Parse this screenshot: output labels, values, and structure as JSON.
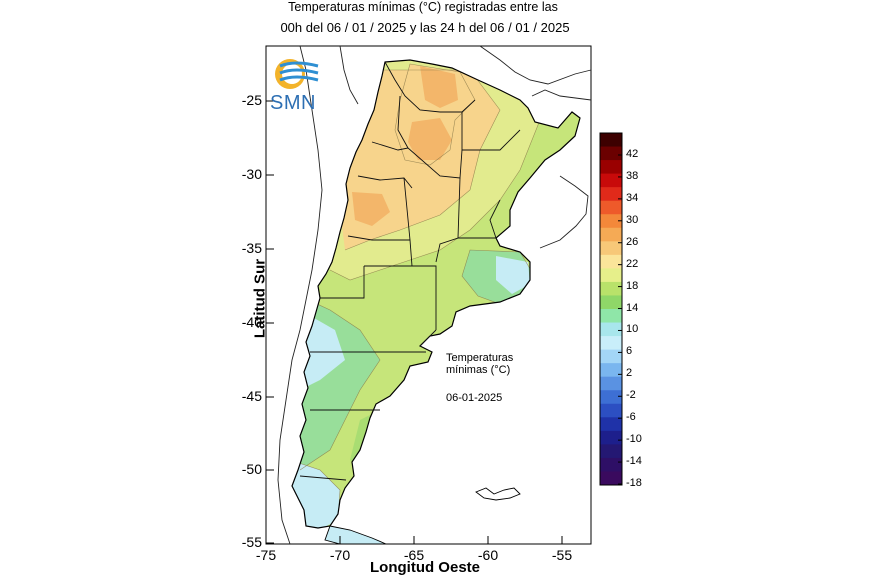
{
  "title_line1": "Temperaturas mínimas (°C) registradas entre las",
  "title_line2": "00h del 06 / 01 / 2025 y las 24 h del 06 / 01 / 2025",
  "ylabel": "Latitud Sur",
  "xlabel": "Longitud Oeste",
  "y_ticks": [
    "-25",
    "-30",
    "-35",
    "-40",
    "-45",
    "-50",
    "-55"
  ],
  "x_ticks": [
    "-75",
    "-70",
    "-65",
    "-60",
    "-55"
  ],
  "logo_text": "SMN",
  "annotation": {
    "line1": "Temperaturas",
    "line2": "mínimas (°C)",
    "date": "06-01-2025"
  },
  "colorbar": {
    "labels": [
      "42",
      "38",
      "34",
      "30",
      "26",
      "22",
      "18",
      "14",
      "10",
      "6",
      "2",
      "-2",
      "-6",
      "-10",
      "-14",
      "-18"
    ],
    "colors_top_to_bottom": [
      "#3d0000",
      "#6b0000",
      "#9a0000",
      "#c80a0a",
      "#e02a1a",
      "#ee5a2a",
      "#f3883a",
      "#f5aa55",
      "#f7c878",
      "#fbe59a",
      "#e6ef8a",
      "#b9e26a",
      "#8fd768",
      "#8fe6a8",
      "#a8e6ec",
      "#c9eefa",
      "#a3d6f7",
      "#7ab6ef",
      "#5a92e2",
      "#3d6fd4",
      "#2c4fc2",
      "#1f32a8",
      "#1d1f8c",
      "#241873",
      "#2e0f66",
      "#3a0a5e"
    ]
  },
  "map_colors": {
    "t24": "#f3b66a",
    "t22": "#f7d48c",
    "t20": "#e2eb8e",
    "t18": "#c6e57a",
    "t16": "#a9dd72",
    "t14": "#98de9a",
    "t12": "#c6ecf5",
    "ocean": "#ffffff"
  }
}
